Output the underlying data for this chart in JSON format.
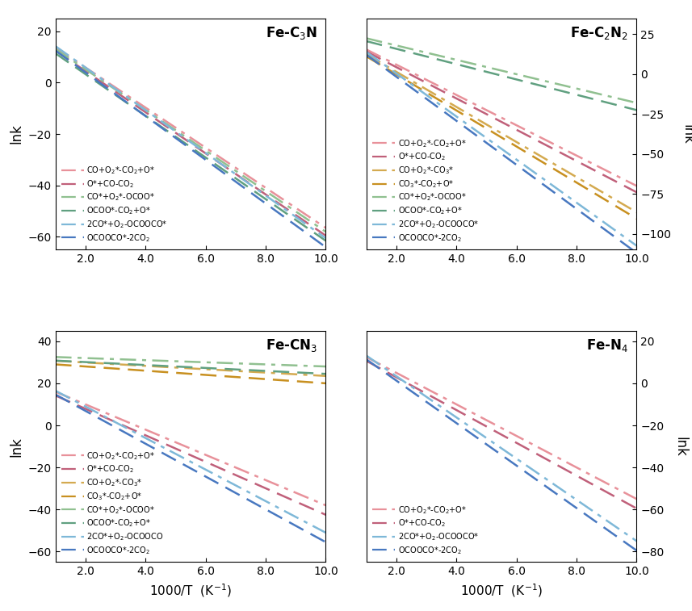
{
  "subplots": [
    {
      "title": "Fe-C$_3$N",
      "ylim": [
        -65,
        25
      ],
      "yticks": [
        -60,
        -40,
        -20,
        0,
        20
      ],
      "ylabel_side": "left",
      "lines": [
        {
          "label": "CO+O$_2$*-CO$_2$+O*",
          "intercept": 21.5,
          "slope": -7.8,
          "color": "#E8919A",
          "ls": "dashdot"
        },
        {
          "label": "O*+CO-CO$_2$",
          "intercept": 20.5,
          "slope": -8.0,
          "color": "#C0607A",
          "ls": "dash"
        },
        {
          "label": "CO*+O$_2$*-OCOO*",
          "intercept": 21.0,
          "slope": -7.9,
          "color": "#90C090",
          "ls": "dashdot"
        },
        {
          "label": "OCOO*-CO$_2$+O*",
          "intercept": 19.5,
          "slope": -8.1,
          "color": "#60A080",
          "ls": "dash"
        },
        {
          "label": "2CO*+O$_2$-OCOOCO*",
          "intercept": 22.5,
          "slope": -8.3,
          "color": "#7EB8D8",
          "ls": "dashdot"
        },
        {
          "label": "OCOOCO*-2CO$_2$",
          "intercept": 21.0,
          "slope": -8.5,
          "color": "#4878C0",
          "ls": "dash"
        }
      ]
    },
    {
      "title": "Fe-C$_2$N$_2$",
      "ylim": [
        -110,
        35
      ],
      "yticks": [
        -100,
        -75,
        -50,
        -25,
        0,
        25
      ],
      "ylabel_side": "right",
      "lines": [
        {
          "label": "CO+O$_2$*-CO$_2$+O*",
          "intercept": 25.0,
          "slope": -9.5,
          "color": "#E8919A",
          "ls": "dashdot"
        },
        {
          "label": "O*+CO-CO$_2$",
          "intercept": 24.0,
          "slope": -9.8,
          "color": "#C0607A",
          "ls": "dash"
        },
        {
          "label": "CO+O$_2$*-CO$_3$*",
          "intercept": 23.5,
          "slope": -11.0,
          "color": "#D4AA50",
          "ls": "dashdot"
        },
        {
          "label": "CO$_3$*-CO$_2$+O*",
          "intercept": 22.5,
          "slope": -11.3,
          "color": "#C89020",
          "ls": "dash"
        },
        {
          "label": "CO*+O$_2$*-OCOO*",
          "intercept": 27.0,
          "slope": -4.5,
          "color": "#90C090",
          "ls": "dashdot"
        },
        {
          "label": "OCOO*-CO$_2$+O*",
          "intercept": 25.5,
          "slope": -4.8,
          "color": "#60A080",
          "ls": "dash"
        },
        {
          "label": "2CO*+O$_2$-OCOOCO*",
          "intercept": 27.5,
          "slope": -13.5,
          "color": "#7EB8D8",
          "ls": "dashdot"
        },
        {
          "label": "OCOOCO*-2CO$_2$",
          "intercept": 26.0,
          "slope": -13.8,
          "color": "#4878C0",
          "ls": "dash"
        }
      ]
    },
    {
      "title": "Fe-CN$_3$",
      "ylim": [
        -65,
        45
      ],
      "yticks": [
        -60,
        -40,
        -20,
        0,
        20,
        40
      ],
      "ylabel_side": "left",
      "lines": [
        {
          "label": "CO+O$_2$*-CO$_2$+O*",
          "intercept": 22.0,
          "slope": -6.0,
          "color": "#E8919A",
          "ls": "dashdot"
        },
        {
          "label": "O*+CO-CO$_2$",
          "intercept": 20.5,
          "slope": -6.3,
          "color": "#C0607A",
          "ls": "dash"
        },
        {
          "label": "CO+O$_2$*-CO$_3$*",
          "intercept": 31.5,
          "slope": -0.8,
          "color": "#D4AA50",
          "ls": "dashdot"
        },
        {
          "label": "CO$_3$*-CO$_2$+O*",
          "intercept": 30.0,
          "slope": -1.0,
          "color": "#C89020",
          "ls": "dash"
        },
        {
          "label": "CO*+O$_2$*-OCOO*",
          "intercept": 33.0,
          "slope": -0.5,
          "color": "#90C090",
          "ls": "dashdot"
        },
        {
          "label": "OCOO*-CO$_2$+O*",
          "intercept": 31.5,
          "slope": -0.7,
          "color": "#60A080",
          "ls": "dash"
        },
        {
          "label": "2CO*+O$_2$-OCOOCO",
          "intercept": 24.0,
          "slope": -7.5,
          "color": "#7EB8D8",
          "ls": "dashdot"
        },
        {
          "label": "OCOOCO*-2CO$_2$",
          "intercept": 22.5,
          "slope": -7.8,
          "color": "#4878C0",
          "ls": "dash"
        }
      ]
    },
    {
      "title": "Fe-N$_4$",
      "ylim": [
        -85,
        25
      ],
      "yticks": [
        -80,
        -60,
        -40,
        -20,
        0,
        20
      ],
      "ylabel_side": "right",
      "lines": [
        {
          "label": "CO+O$_2$*-CO$_2$+O*",
          "intercept": 20.0,
          "slope": -7.5,
          "color": "#E8919A",
          "ls": "dashdot"
        },
        {
          "label": "O*+CO-CO$_2$",
          "intercept": 18.5,
          "slope": -7.8,
          "color": "#C0607A",
          "ls": "dash"
        },
        {
          "label": "2CO*+O$_2$-OCOOCO*",
          "intercept": 23.0,
          "slope": -9.8,
          "color": "#7EB8D8",
          "ls": "dashdot"
        },
        {
          "label": "OCOOCO*-2CO$_2$",
          "intercept": 21.5,
          "slope": -10.1,
          "color": "#4878C0",
          "ls": "dash"
        }
      ]
    }
  ],
  "x_range": [
    1.0,
    10.0
  ],
  "xticks": [
    2.0,
    4.0,
    6.0,
    8.0,
    10.0
  ],
  "xtick_labels": [
    "2.0",
    "4.0",
    "6.0",
    "8.0",
    "10.0"
  ],
  "xlabel": "1000/T  (K$^{-1}$)",
  "ylabel": "lnk",
  "lw": 1.8,
  "legend_fontsize": 7.0
}
